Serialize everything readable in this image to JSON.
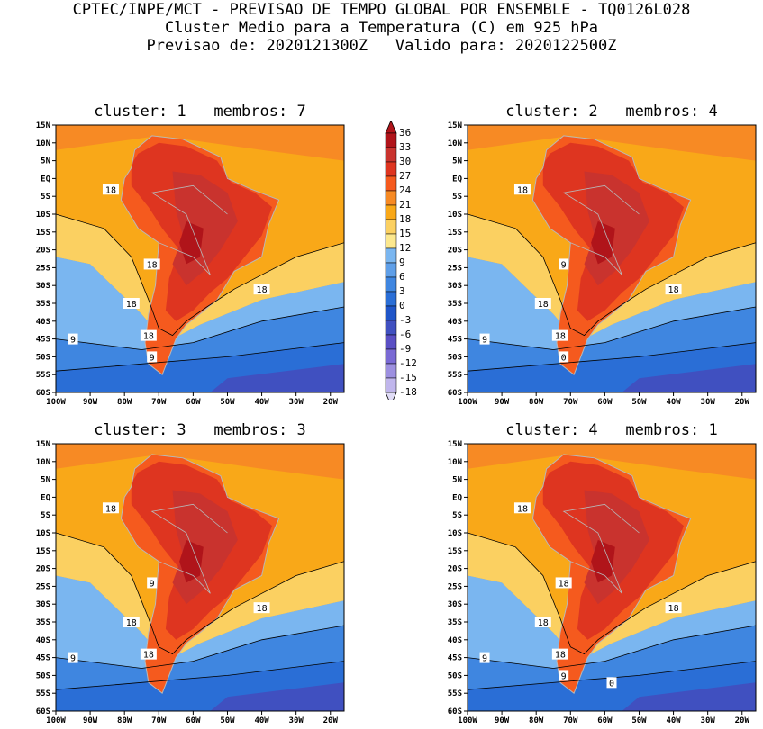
{
  "header": {
    "line1": "CPTEC/INPE/MCT - PREVISAO DE TEMPO GLOBAL POR ENSEMBLE - TQ0126L028",
    "line2": "Cluster Medio para a Temperatura (C) em 925 hPa",
    "line3": "Previsao de: 2020121300Z   Valido para: 2020122500Z"
  },
  "lat_ticks": [
    "15N",
    "10N",
    "5N",
    "EQ",
    "5S",
    "10S",
    "15S",
    "20S",
    "25S",
    "30S",
    "35S",
    "40S",
    "45S",
    "50S",
    "55S",
    "60S"
  ],
  "lon_ticks": [
    "100W",
    "90W",
    "80W",
    "70W",
    "60W",
    "50W",
    "40W",
    "30W",
    "20W"
  ],
  "colorbar": {
    "levels": [
      "36",
      "33",
      "30",
      "27",
      "24",
      "21",
      "18",
      "15",
      "12",
      "9",
      "6",
      "3",
      "0",
      "-3",
      "-6",
      "-9",
      "-12",
      "-15",
      "-18"
    ],
    "colors": [
      "#b0141a",
      "#c9332e",
      "#de3520",
      "#f55a1e",
      "#f78a24",
      "#f9a818",
      "#fbd061",
      "#fce88e",
      "#7ab6f0",
      "#5f9fe8",
      "#3f86e0",
      "#2a6ed6",
      "#1f55c8",
      "#4050c0",
      "#5a4fc4",
      "#7a6ad4",
      "#9d90e0",
      "#c0b6ec"
    ]
  },
  "panels": [
    {
      "title": "cluster: 1   membros: 7",
      "contour_labels": [
        "18",
        "18",
        "18",
        "18",
        "18",
        "9",
        "9"
      ]
    },
    {
      "title": "cluster: 2   membros: 4",
      "contour_labels": [
        "18",
        "18",
        "18",
        "18",
        "9",
        "9",
        "0"
      ]
    },
    {
      "title": "cluster: 3   membros: 3",
      "contour_labels": [
        "18",
        "18",
        "18",
        "18",
        "9",
        "9"
      ]
    },
    {
      "title": "cluster: 4   membros: 1",
      "contour_labels": [
        "18",
        "18",
        "18",
        "18",
        "18",
        "9",
        "9",
        "0"
      ]
    }
  ]
}
